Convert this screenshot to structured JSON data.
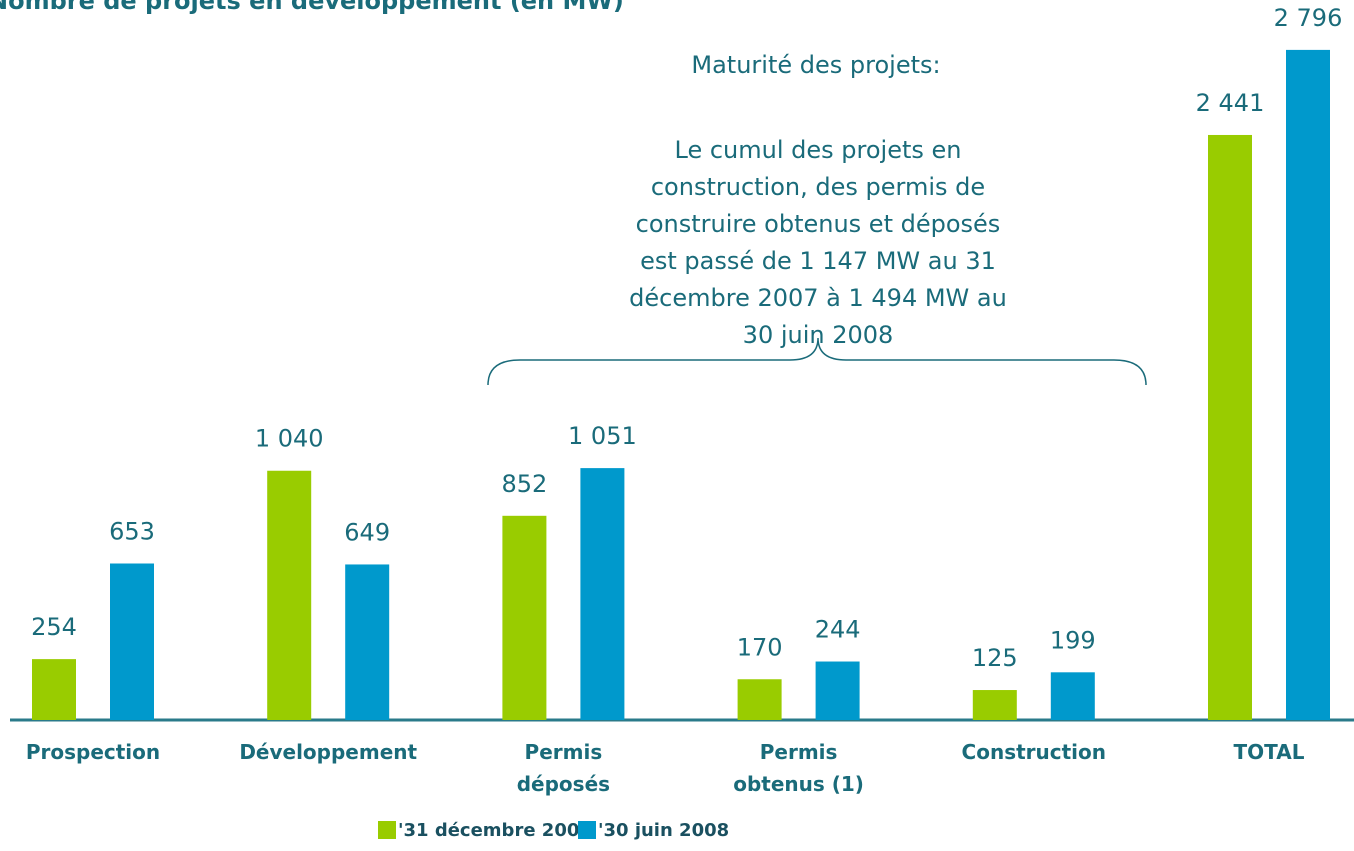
{
  "chart_data": {
    "type": "bar",
    "title": "Nombre de projets en développement (en MW)",
    "categories": [
      [
        "Prospection"
      ],
      [
        "Développement"
      ],
      [
        "Permis",
        "déposés"
      ],
      [
        "Permis",
        "obtenus (1)"
      ],
      [
        "Construction"
      ],
      [
        "TOTAL"
      ]
    ],
    "series": [
      {
        "name": "'31 décembre 2007",
        "color": "#99cc00",
        "values": [
          254,
          1040,
          852,
          170,
          125,
          2441
        ],
        "value_labels": [
          "254",
          "1 040",
          "852",
          "170",
          "125",
          "2 441"
        ]
      },
      {
        "name": "'30 juin 2008",
        "color": "#0099cc",
        "values": [
          653,
          649,
          1051,
          244,
          199,
          2796
        ],
        "value_labels": [
          "653",
          "649",
          "1 051",
          "244",
          "199",
          "2 796"
        ]
      }
    ],
    "ylim": [
      0,
      3000
    ],
    "annotation": {
      "heading": "Maturité des projets:",
      "lines": [
        "Le cumul  des projets en",
        "construction, des permis de",
        "construire obtenus et déposés",
        "est passé de 1 147 MW au 31",
        "décembre 2007 à 1 494 MW au",
        "30 juin 2008"
      ]
    }
  }
}
